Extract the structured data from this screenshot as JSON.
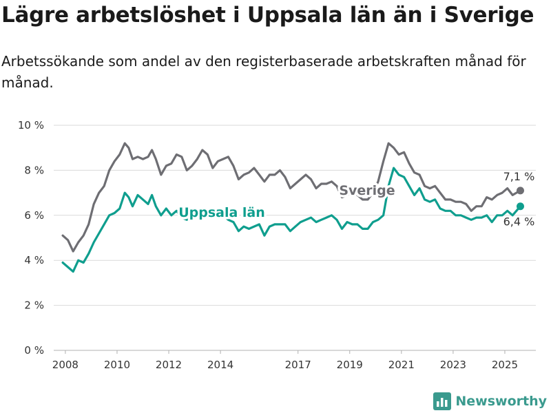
{
  "title": "Lägre arbetslöshet i Uppsala län än i Sverige",
  "subtitle": "Arbetssökande som andel av den registerbaserade arbetskraften månad för månad.",
  "brand": "Newsworthy",
  "colors": {
    "sverige": "#6e6e73",
    "uppsala": "#0f9e8e",
    "grid": "#d9d9d9"
  },
  "chart_data": {
    "type": "line",
    "x_unit": "year",
    "ylim": [
      0,
      10
    ],
    "y_ticks": [
      0,
      2,
      4,
      6,
      8,
      10
    ],
    "y_tick_labels": [
      "0 %",
      "2 %",
      "4 %",
      "6 %",
      "8 %",
      "10 %"
    ],
    "x_ticks": [
      2008,
      2010,
      2012,
      2014,
      2017,
      2019,
      2021,
      2023,
      2025
    ],
    "x_tick_labels": [
      "2008",
      "2010",
      "2012",
      "2014",
      "2017",
      "2019",
      "2021",
      "2023",
      "2025"
    ],
    "grid": true,
    "series": [
      {
        "name": "Sverige",
        "end_label": "7,1 %",
        "points": [
          [
            2007.9,
            5.1
          ],
          [
            2008.1,
            4.9
          ],
          [
            2008.3,
            4.4
          ],
          [
            2008.5,
            4.8
          ],
          [
            2008.7,
            5.1
          ],
          [
            2008.9,
            5.6
          ],
          [
            2009.1,
            6.5
          ],
          [
            2009.3,
            7.0
          ],
          [
            2009.5,
            7.3
          ],
          [
            2009.7,
            8.0
          ],
          [
            2009.9,
            8.4
          ],
          [
            2010.1,
            8.7
          ],
          [
            2010.3,
            9.2
          ],
          [
            2010.45,
            9.0
          ],
          [
            2010.6,
            8.5
          ],
          [
            2010.8,
            8.6
          ],
          [
            2011.0,
            8.5
          ],
          [
            2011.2,
            8.6
          ],
          [
            2011.35,
            8.9
          ],
          [
            2011.5,
            8.5
          ],
          [
            2011.7,
            7.8
          ],
          [
            2011.9,
            8.2
          ],
          [
            2012.1,
            8.3
          ],
          [
            2012.3,
            8.7
          ],
          [
            2012.5,
            8.6
          ],
          [
            2012.7,
            8.0
          ],
          [
            2012.9,
            8.2
          ],
          [
            2013.1,
            8.5
          ],
          [
            2013.3,
            8.9
          ],
          [
            2013.5,
            8.7
          ],
          [
            2013.7,
            8.1
          ],
          [
            2013.9,
            8.4
          ],
          [
            2014.1,
            8.5
          ],
          [
            2014.3,
            8.6
          ],
          [
            2014.5,
            8.2
          ],
          [
            2014.7,
            7.6
          ],
          [
            2014.9,
            7.8
          ],
          [
            2015.1,
            7.9
          ],
          [
            2015.3,
            8.1
          ],
          [
            2015.5,
            7.8
          ],
          [
            2015.7,
            7.5
          ],
          [
            2015.9,
            7.8
          ],
          [
            2016.1,
            7.8
          ],
          [
            2016.3,
            8.0
          ],
          [
            2016.5,
            7.7
          ],
          [
            2016.7,
            7.2
          ],
          [
            2016.9,
            7.4
          ],
          [
            2017.1,
            7.6
          ],
          [
            2017.3,
            7.8
          ],
          [
            2017.5,
            7.6
          ],
          [
            2017.7,
            7.2
          ],
          [
            2017.9,
            7.4
          ],
          [
            2018.1,
            7.4
          ],
          [
            2018.3,
            7.5
          ],
          [
            2018.5,
            7.3
          ],
          [
            2018.7,
            6.8
          ],
          [
            2018.9,
            6.9
          ],
          [
            2019.1,
            7.0
          ],
          [
            2019.3,
            6.9
          ],
          [
            2019.5,
            6.7
          ],
          [
            2019.7,
            6.7
          ],
          [
            2019.9,
            7.0
          ],
          [
            2020.1,
            7.5
          ],
          [
            2020.3,
            8.4
          ],
          [
            2020.5,
            9.2
          ],
          [
            2020.7,
            9.0
          ],
          [
            2020.9,
            8.7
          ],
          [
            2021.1,
            8.8
          ],
          [
            2021.3,
            8.3
          ],
          [
            2021.5,
            7.9
          ],
          [
            2021.7,
            7.8
          ],
          [
            2021.9,
            7.3
          ],
          [
            2022.1,
            7.2
          ],
          [
            2022.3,
            7.3
          ],
          [
            2022.5,
            7.0
          ],
          [
            2022.7,
            6.7
          ],
          [
            2022.9,
            6.7
          ],
          [
            2023.1,
            6.6
          ],
          [
            2023.3,
            6.6
          ],
          [
            2023.5,
            6.5
          ],
          [
            2023.7,
            6.2
          ],
          [
            2023.9,
            6.4
          ],
          [
            2024.1,
            6.4
          ],
          [
            2024.3,
            6.8
          ],
          [
            2024.5,
            6.7
          ],
          [
            2024.7,
            6.9
          ],
          [
            2024.9,
            7.0
          ],
          [
            2025.1,
            7.2
          ],
          [
            2025.3,
            6.9
          ],
          [
            2025.6,
            7.1
          ]
        ]
      },
      {
        "name": "Uppsala län",
        "end_label": "6,4 %",
        "points": [
          [
            2007.9,
            3.9
          ],
          [
            2008.1,
            3.7
          ],
          [
            2008.3,
            3.5
          ],
          [
            2008.5,
            4.0
          ],
          [
            2008.7,
            3.9
          ],
          [
            2008.9,
            4.3
          ],
          [
            2009.1,
            4.8
          ],
          [
            2009.3,
            5.2
          ],
          [
            2009.5,
            5.6
          ],
          [
            2009.7,
            6.0
          ],
          [
            2009.9,
            6.1
          ],
          [
            2010.1,
            6.3
          ],
          [
            2010.3,
            7.0
          ],
          [
            2010.45,
            6.8
          ],
          [
            2010.6,
            6.4
          ],
          [
            2010.8,
            6.9
          ],
          [
            2011.0,
            6.7
          ],
          [
            2011.2,
            6.5
          ],
          [
            2011.35,
            6.9
          ],
          [
            2011.5,
            6.4
          ],
          [
            2011.7,
            6.0
          ],
          [
            2011.9,
            6.3
          ],
          [
            2012.1,
            6.0
          ],
          [
            2012.3,
            6.2
          ],
          [
            2012.5,
            5.9
          ],
          [
            2012.7,
            5.8
          ],
          [
            2012.9,
            6.0
          ],
          [
            2013.1,
            6.1
          ],
          [
            2013.3,
            6.3
          ],
          [
            2013.5,
            6.2
          ],
          [
            2013.7,
            5.9
          ],
          [
            2013.9,
            6.1
          ],
          [
            2014.1,
            6.0
          ],
          [
            2014.3,
            5.8
          ],
          [
            2014.5,
            5.7
          ],
          [
            2014.7,
            5.3
          ],
          [
            2014.9,
            5.5
          ],
          [
            2015.1,
            5.4
          ],
          [
            2015.3,
            5.5
          ],
          [
            2015.5,
            5.6
          ],
          [
            2015.7,
            5.1
          ],
          [
            2015.9,
            5.5
          ],
          [
            2016.1,
            5.6
          ],
          [
            2016.3,
            5.6
          ],
          [
            2016.5,
            5.6
          ],
          [
            2016.7,
            5.3
          ],
          [
            2016.9,
            5.5
          ],
          [
            2017.1,
            5.7
          ],
          [
            2017.3,
            5.8
          ],
          [
            2017.5,
            5.9
          ],
          [
            2017.7,
            5.7
          ],
          [
            2017.9,
            5.8
          ],
          [
            2018.1,
            5.9
          ],
          [
            2018.3,
            6.0
          ],
          [
            2018.5,
            5.8
          ],
          [
            2018.7,
            5.4
          ],
          [
            2018.9,
            5.7
          ],
          [
            2019.1,
            5.6
          ],
          [
            2019.3,
            5.6
          ],
          [
            2019.5,
            5.4
          ],
          [
            2019.7,
            5.4
          ],
          [
            2019.9,
            5.7
          ],
          [
            2020.1,
            5.8
          ],
          [
            2020.3,
            6.0
          ],
          [
            2020.5,
            7.3
          ],
          [
            2020.7,
            8.1
          ],
          [
            2020.9,
            7.8
          ],
          [
            2021.1,
            7.7
          ],
          [
            2021.3,
            7.3
          ],
          [
            2021.5,
            6.9
          ],
          [
            2021.7,
            7.2
          ],
          [
            2021.9,
            6.7
          ],
          [
            2022.1,
            6.6
          ],
          [
            2022.3,
            6.7
          ],
          [
            2022.5,
            6.3
          ],
          [
            2022.7,
            6.2
          ],
          [
            2022.9,
            6.2
          ],
          [
            2023.1,
            6.0
          ],
          [
            2023.3,
            6.0
          ],
          [
            2023.5,
            5.9
          ],
          [
            2023.7,
            5.8
          ],
          [
            2023.9,
            5.9
          ],
          [
            2024.1,
            5.9
          ],
          [
            2024.3,
            6.0
          ],
          [
            2024.5,
            5.7
          ],
          [
            2024.7,
            6.0
          ],
          [
            2024.9,
            6.0
          ],
          [
            2025.1,
            6.2
          ],
          [
            2025.3,
            6.0
          ],
          [
            2025.6,
            6.4
          ]
        ]
      }
    ]
  }
}
